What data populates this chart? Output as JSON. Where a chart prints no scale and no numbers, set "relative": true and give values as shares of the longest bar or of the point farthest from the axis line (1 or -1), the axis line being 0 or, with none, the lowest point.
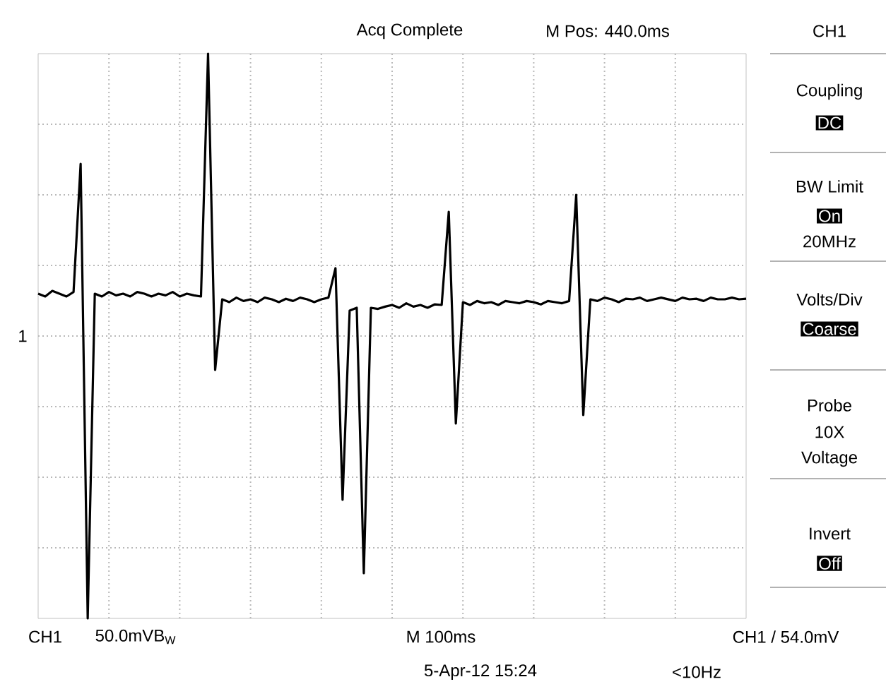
{
  "chart_data": {
    "type": "line",
    "relative": true,
    "grid": true,
    "color": "#000000",
    "categories": [
      null,
      null,
      null,
      null,
      null,
      null,
      null,
      null,
      null,
      null,
      null,
      null,
      null,
      null,
      null,
      null,
      null,
      null,
      null,
      null,
      null,
      null,
      null,
      null,
      null,
      null,
      null,
      null,
      null,
      null,
      null,
      null,
      null,
      null,
      null,
      null,
      null,
      null,
      null,
      null,
      null,
      null,
      null,
      null,
      null,
      null,
      null,
      null,
      null,
      null,
      null,
      null,
      null,
      null,
      null,
      null,
      null,
      null,
      null,
      null,
      null,
      null,
      null,
      null,
      null,
      null,
      null,
      null,
      null,
      null,
      null,
      null,
      null,
      null,
      null,
      null,
      null,
      null,
      null,
      null,
      null,
      null,
      null,
      null,
      null,
      null,
      null,
      null,
      null,
      null,
      null,
      null,
      null,
      null,
      null,
      null,
      null,
      null,
      null,
      null,
      null
    ],
    "values": [
      0.575,
      0.57,
      0.58,
      0.575,
      0.57,
      0.578,
      0.805,
      0,
      0.575,
      0.57,
      0.578,
      0.572,
      0.575,
      0.57,
      0.578,
      0.575,
      0.57,
      0.575,
      0.572,
      0.578,
      0.57,
      0.575,
      0.572,
      0.57,
      1,
      0.44,
      0.565,
      0.56,
      0.568,
      0.562,
      0.565,
      0.56,
      0.568,
      0.565,
      0.56,
      0.566,
      0.562,
      0.568,
      0.565,
      0.56,
      0.565,
      0.568,
      0.62,
      0.21,
      0.545,
      0.55,
      0.08,
      0.55,
      0.548,
      0.552,
      0.555,
      0.55,
      0.558,
      0.552,
      0.555,
      0.55,
      0.556,
      0.555,
      0.72,
      0.345,
      0.56,
      0.555,
      0.562,
      0.558,
      0.56,
      0.555,
      0.562,
      0.56,
      0.558,
      0.562,
      0.56,
      0.556,
      0.562,
      0.56,
      0.558,
      0.562,
      0.75,
      0.36,
      0.565,
      0.562,
      0.568,
      0.565,
      0.56,
      0.566,
      0.565,
      0.568,
      0.562,
      0.565,
      0.568,
      0.565,
      0.562,
      0.568,
      0.565,
      0.566,
      0.562,
      0.568,
      0.565,
      0.565,
      0.568,
      0.565,
      0.566
    ],
    "annotations": [
      "1",
      "Acq Complete",
      "M Pos: 440.0ms",
      "CH1",
      "Coupling",
      "DC",
      "BW Limit",
      "On",
      "20MHz",
      "Volts/Div",
      "Coarse",
      "Probe",
      "10X",
      "Voltage",
      "Invert",
      "Off",
      "CH1",
      "50.0mVB$_{W}$",
      "M 100ms",
      "5-Apr-12 15:24",
      "CH1 / 54.0mV",
      "<10Hz"
    ]
  }
}
